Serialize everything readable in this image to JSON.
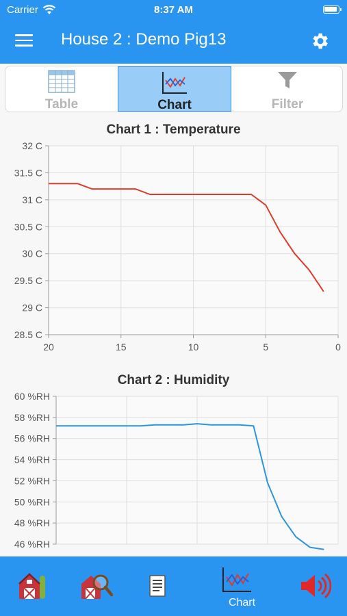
{
  "status": {
    "carrier": "Carrier",
    "time": "8:37 AM"
  },
  "header": {
    "title": "House 2 : Demo Pig13"
  },
  "view_tabs": [
    {
      "label": "Table",
      "icon": "table-icon",
      "active": false
    },
    {
      "label": "Chart",
      "icon": "line-chart-icon",
      "active": true
    },
    {
      "label": "Filter",
      "icon": "funnel-icon",
      "active": false
    }
  ],
  "colors": {
    "accent": "#2a95f0",
    "temperature_line": "#e03a2a",
    "humidity_line": "#2a95e0",
    "active_tab": "#99cdf8"
  },
  "chart_data": [
    {
      "type": "line",
      "title": "Chart 1 : Temperature",
      "xlabel": "",
      "ylabel": "",
      "xlim": [
        20,
        0
      ],
      "ylim": [
        28.5,
        32
      ],
      "x_ticks": [
        "20",
        "15",
        "10",
        "5",
        "0"
      ],
      "y_ticks": [
        "28.5 C",
        "29 C",
        "29.5 C",
        "30 C",
        "30.5 C",
        "31 C",
        "31.5 C",
        "32 C"
      ],
      "grid": true,
      "series": [
        {
          "x": [
            20,
            19,
            18,
            17,
            16,
            15,
            14,
            13,
            12,
            11,
            10,
            9,
            8,
            7,
            6,
            5,
            4,
            3,
            2,
            1
          ],
          "values": [
            31.3,
            31.3,
            31.3,
            31.2,
            31.2,
            31.2,
            31.2,
            31.1,
            31.1,
            31.1,
            31.1,
            31.1,
            31.1,
            31.1,
            31.1,
            30.9,
            30.4,
            30.0,
            29.7,
            29.3
          ]
        }
      ]
    },
    {
      "type": "line",
      "title": "Chart 2 : Humidity",
      "xlabel": "",
      "ylabel": "",
      "xlim": [
        20,
        0
      ],
      "ylim": [
        46,
        60
      ],
      "y_ticks": [
        "46 %RH",
        "48 %RH",
        "50 %RH",
        "52 %RH",
        "54 %RH",
        "56 %RH",
        "58 %RH",
        "60 %RH"
      ],
      "grid": true,
      "series": [
        {
          "x": [
            20,
            19,
            18,
            17,
            16,
            15,
            14,
            13,
            12,
            11,
            10,
            9,
            8,
            7,
            6,
            5,
            4,
            3,
            2,
            1
          ],
          "values": [
            57.2,
            57.2,
            57.2,
            57.2,
            57.2,
            57.2,
            57.2,
            57.3,
            57.3,
            57.3,
            57.4,
            57.3,
            57.3,
            57.3,
            57.2,
            51.8,
            48.6,
            46.7,
            45.7,
            45.5
          ]
        }
      ]
    }
  ],
  "bottom_tabs": [
    {
      "icon": "barn-icon",
      "label": ""
    },
    {
      "icon": "barn-search-icon",
      "label": ""
    },
    {
      "icon": "document-icon",
      "label": ""
    },
    {
      "icon": "line-chart-icon",
      "label": "Chart"
    },
    {
      "icon": "speaker-icon",
      "label": ""
    }
  ]
}
